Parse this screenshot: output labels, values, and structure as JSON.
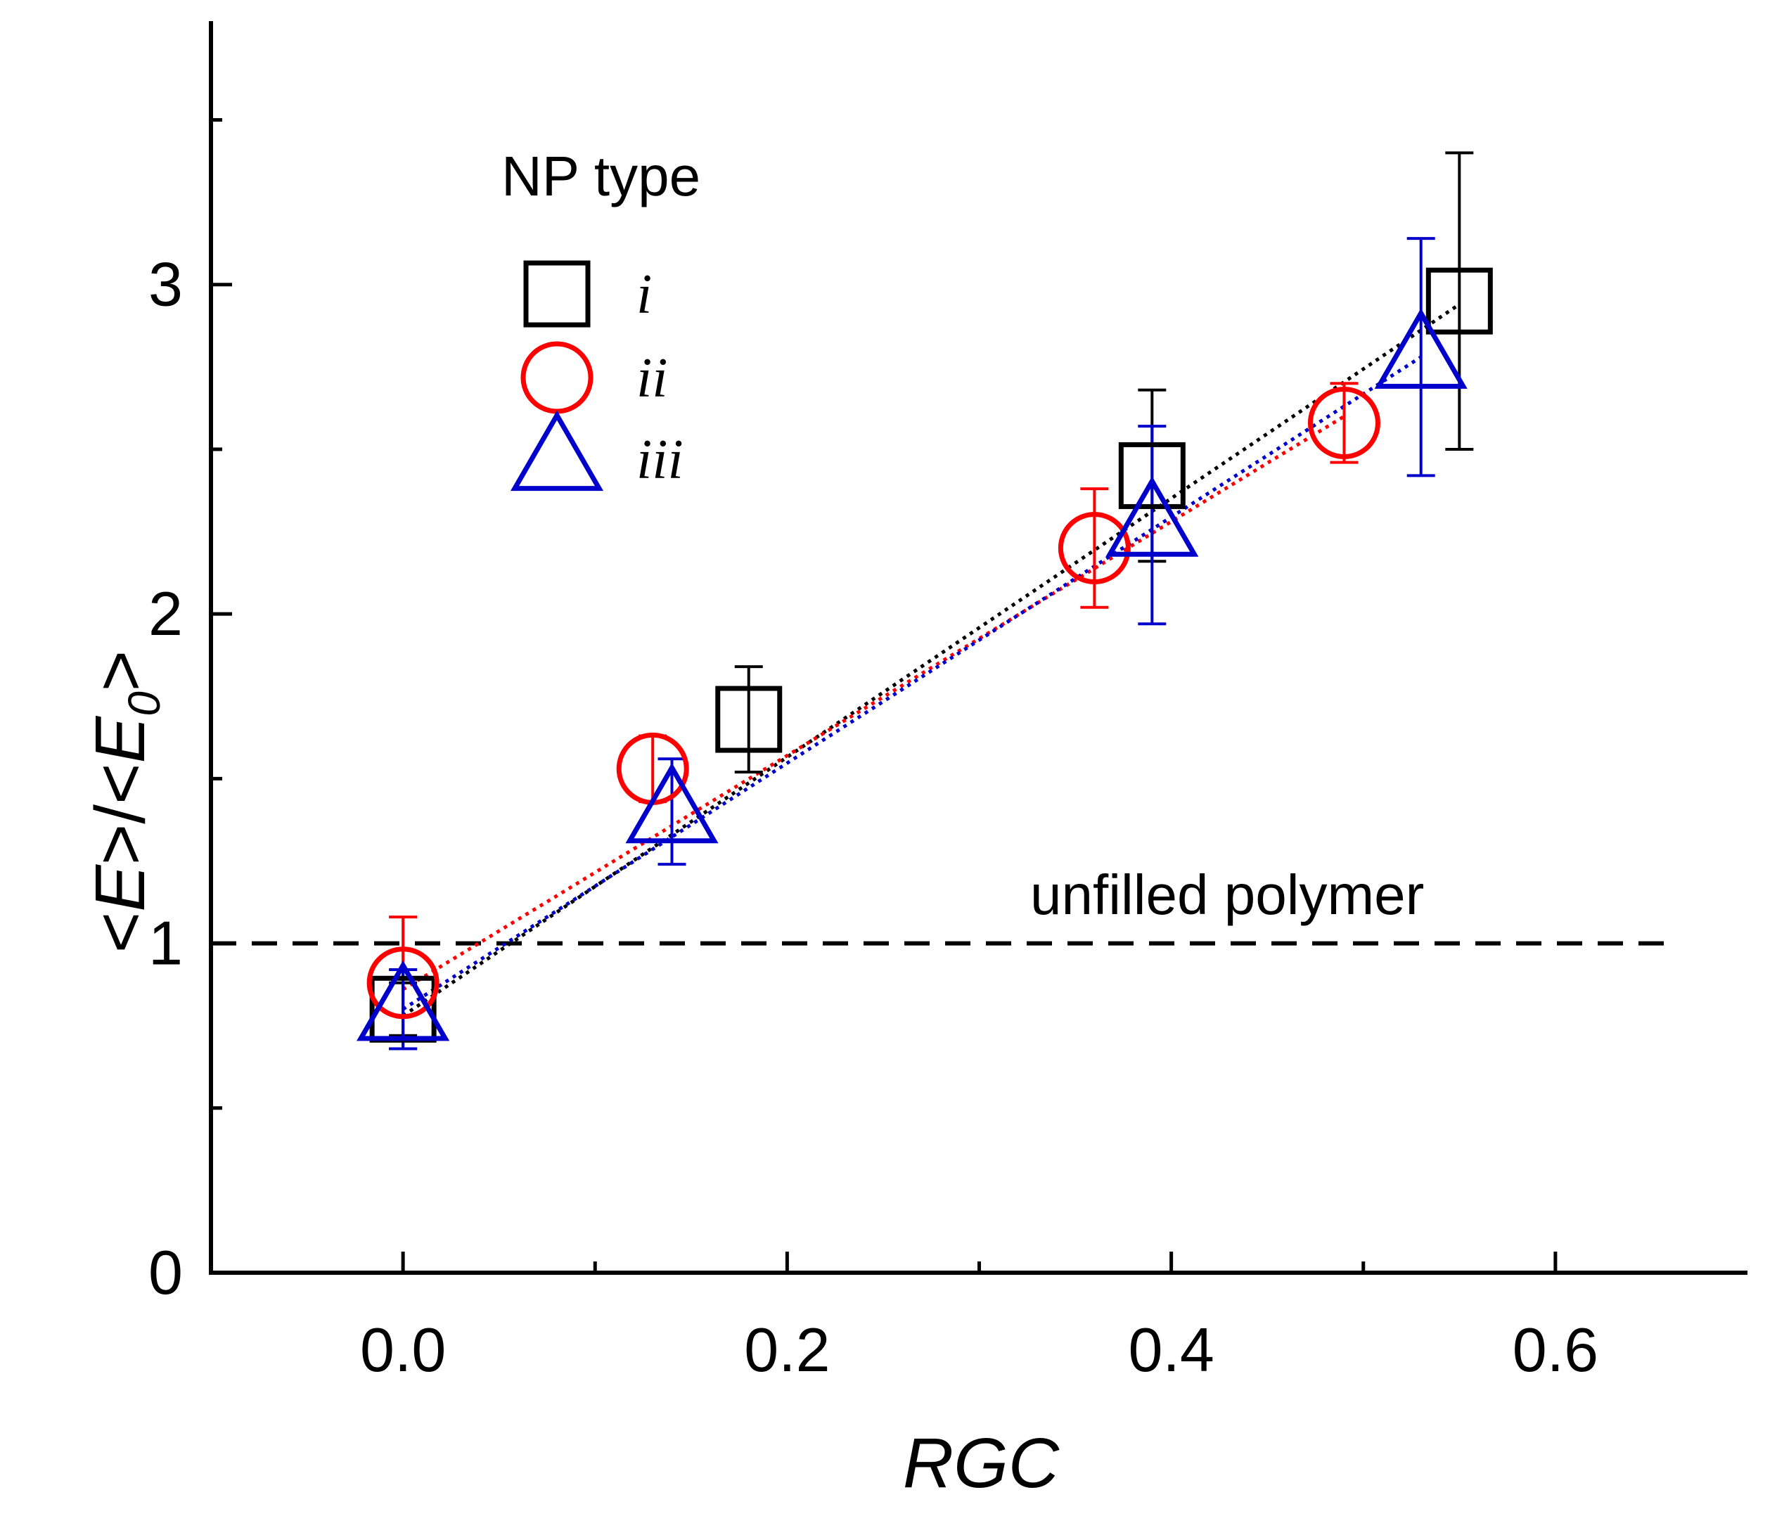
{
  "chart_data": {
    "type": "scatter",
    "xlabel": "RGC",
    "ylabel_parts": [
      "<",
      "E",
      ">/<",
      "E",
      "0",
      ">"
    ],
    "xlim": [
      -0.1,
      0.7
    ],
    "ylim": [
      0,
      3.8
    ],
    "x_ticks": [
      0.0,
      0.2,
      0.4,
      0.6
    ],
    "x_tick_labels": [
      "0.0",
      "0.2",
      "0.4",
      "0.6"
    ],
    "y_ticks": [
      0,
      1,
      2,
      3
    ],
    "y_tick_labels": [
      "0",
      "1",
      "2",
      "3"
    ],
    "y_minor_ticks": [
      0.5,
      1.5,
      2.5,
      3.5
    ],
    "grid": false,
    "legend": {
      "title": "NP type",
      "position": "top-left"
    },
    "series": [
      {
        "name": "i",
        "marker": "square",
        "color": "#000000",
        "points": [
          {
            "x": 0.0,
            "y": 0.8,
            "err": 0.08
          },
          {
            "x": 0.18,
            "y": 1.68,
            "err": 0.16
          },
          {
            "x": 0.39,
            "y": 2.42,
            "err": 0.26
          },
          {
            "x": 0.55,
            "y": 2.95,
            "err": 0.45
          }
        ],
        "fit": {
          "from": [
            0.0,
            0.78
          ],
          "to": [
            0.55,
            2.94
          ]
        }
      },
      {
        "name": "ii",
        "marker": "circle",
        "color": "#ff0000",
        "points": [
          {
            "x": 0.0,
            "y": 0.88,
            "err": 0.2
          },
          {
            "x": 0.13,
            "y": 1.53,
            "err": 0.1
          },
          {
            "x": 0.36,
            "y": 2.2,
            "err": 0.18
          },
          {
            "x": 0.49,
            "y": 2.58,
            "err": 0.12
          }
        ],
        "fit": {
          "from": [
            0.0,
            0.86
          ],
          "to": [
            0.49,
            2.6
          ]
        }
      },
      {
        "name": "iii",
        "marker": "triangle",
        "color": "#0000cc",
        "points": [
          {
            "x": 0.0,
            "y": 0.8,
            "err": 0.12
          },
          {
            "x": 0.14,
            "y": 1.4,
            "err": 0.16
          },
          {
            "x": 0.39,
            "y": 2.27,
            "err": 0.3
          },
          {
            "x": 0.53,
            "y": 2.78,
            "err": 0.36
          }
        ],
        "fit": {
          "from": [
            0.0,
            0.8
          ],
          "to": [
            0.53,
            2.78
          ]
        }
      }
    ],
    "reference_line": {
      "y": 1,
      "label": "unfilled polymer",
      "style": "dashed"
    }
  }
}
